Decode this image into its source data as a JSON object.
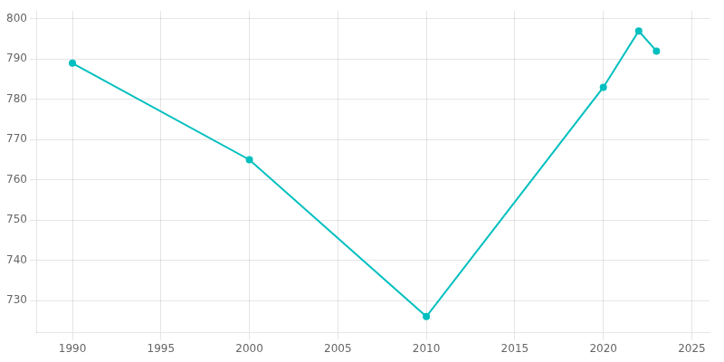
{
  "chart_data": {
    "type": "line",
    "x": [
      1990,
      2000,
      2010,
      2020,
      2022,
      2023
    ],
    "values": [
      789,
      765,
      726,
      783,
      797,
      792
    ],
    "color": "#00BFBF",
    "marker": "circle",
    "xlim": [
      1988,
      2026
    ],
    "xticks": [
      1990,
      1995,
      2000,
      2005,
      2010,
      2015,
      2020,
      2025
    ],
    "ylim": [
      722,
      802
    ],
    "yticks": [
      730,
      740,
      750,
      760,
      770,
      780,
      790,
      800
    ],
    "grid": true
  }
}
